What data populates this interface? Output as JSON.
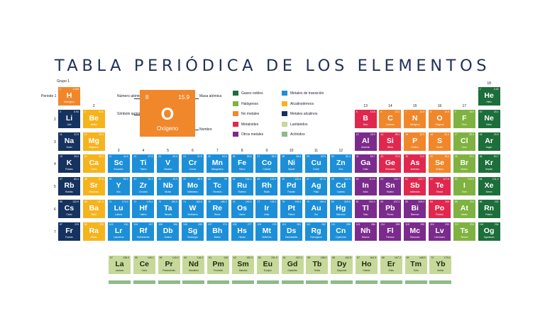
{
  "title": "TABLA PERIÓDICA DE LOS ELEMENTOS",
  "colors": {
    "noble": "#1c6e3a",
    "halogen": "#7fb240",
    "nonmetal": "#f1872b",
    "metalloid": "#e0284f",
    "other": "#7a2b8c",
    "transition": "#1d8fd8",
    "alkaline_earth": "#f5b41d",
    "alkali": "#16325e",
    "lanthanide": "#c7d89b",
    "actinide": "#8fba8a"
  },
  "labels": {
    "group": "Grupo 1",
    "period": "Periodo 1",
    "numero_atomico": "Número atómico",
    "masa_atomica": "Masa atómica",
    "simbolo_quimico": "Símbolo químico",
    "nombre": "Nombre"
  },
  "key": {
    "z": "8",
    "mass": "15.9",
    "symbol": "O",
    "name": "Oxígeno"
  },
  "legend": [
    {
      "label": "Gases nobles",
      "cat": "noble"
    },
    {
      "label": "Halógenos",
      "cat": "halogen"
    },
    {
      "label": "No metales",
      "cat": "nonmetal"
    },
    {
      "label": "Metaloides",
      "cat": "metalloid"
    },
    {
      "label": "Otros metales",
      "cat": "other"
    },
    {
      "label": "Metales de transición",
      "cat": "transition"
    },
    {
      "label": "Alcalinotérreos",
      "cat": "alkaline_earth"
    },
    {
      "label": "Metales alcalinos",
      "cat": "alkali"
    },
    {
      "label": "Lantánidos",
      "cat": "lanthanide"
    },
    {
      "label": "Actínidos",
      "cat": "actinide"
    }
  ],
  "group_numbers": [
    {
      "g": 2,
      "label": "2"
    },
    {
      "g": 3,
      "label": "3"
    },
    {
      "g": 4,
      "label": "4"
    },
    {
      "g": 5,
      "label": "5"
    },
    {
      "g": 6,
      "label": "6"
    },
    {
      "g": 7,
      "label": "7"
    },
    {
      "g": 8,
      "label": "8"
    },
    {
      "g": 9,
      "label": "9"
    },
    {
      "g": 10,
      "label": "10"
    },
    {
      "g": 11,
      "label": "11"
    },
    {
      "g": 12,
      "label": "12"
    },
    {
      "g": 13,
      "label": "13"
    },
    {
      "g": 14,
      "label": "14"
    },
    {
      "g": 15,
      "label": "15"
    },
    {
      "g": 16,
      "label": "16"
    },
    {
      "g": 17,
      "label": "17"
    },
    {
      "g": 18,
      "label": "18"
    }
  ],
  "period_numbers": [
    "2",
    "3",
    "4",
    "5",
    "6",
    "7"
  ],
  "elements": [
    {
      "p": 1,
      "g": 1,
      "z": "1",
      "s": "H",
      "n": "Hidrógeno",
      "m": "1.008",
      "cat": "nonmetal"
    },
    {
      "p": 1,
      "g": 18,
      "z": "2",
      "s": "He",
      "n": "Helio",
      "m": "4.00",
      "cat": "noble"
    },
    {
      "p": 2,
      "g": 1,
      "z": "3",
      "s": "Li",
      "n": "Litio",
      "m": "6.94",
      "cat": "alkali"
    },
    {
      "p": 2,
      "g": 2,
      "z": "4",
      "s": "Be",
      "n": "Berilio",
      "m": "9.01",
      "cat": "alkaline_earth"
    },
    {
      "p": 2,
      "g": 13,
      "z": "5",
      "s": "B",
      "n": "Boro",
      "m": "10.8",
      "cat": "metalloid"
    },
    {
      "p": 2,
      "g": 14,
      "z": "6",
      "s": "C",
      "n": "Carbono",
      "m": "12.0",
      "cat": "nonmetal"
    },
    {
      "p": 2,
      "g": 15,
      "z": "7",
      "s": "N",
      "n": "Nitrógeno",
      "m": "14.0",
      "cat": "nonmetal"
    },
    {
      "p": 2,
      "g": 16,
      "z": "8",
      "s": "O",
      "n": "Oxígeno",
      "m": "15.9",
      "cat": "nonmetal"
    },
    {
      "p": 2,
      "g": 17,
      "z": "9",
      "s": "F",
      "n": "Flúor",
      "m": "18.9",
      "cat": "halogen"
    },
    {
      "p": 2,
      "g": 18,
      "z": "10",
      "s": "Ne",
      "n": "Neón",
      "m": "20.1",
      "cat": "noble"
    },
    {
      "p": 3,
      "g": 1,
      "z": "11",
      "s": "Na",
      "n": "Sodio",
      "m": "22.9",
      "cat": "alkali"
    },
    {
      "p": 3,
      "g": 2,
      "z": "12",
      "s": "Mg",
      "n": "Magnesio",
      "m": "24.3",
      "cat": "alkaline_earth"
    },
    {
      "p": 3,
      "g": 13,
      "z": "13",
      "s": "Al",
      "n": "Aluminio",
      "m": "26.9",
      "cat": "other"
    },
    {
      "p": 3,
      "g": 14,
      "z": "14",
      "s": "Si",
      "n": "Silicio",
      "m": "28.0",
      "cat": "metalloid"
    },
    {
      "p": 3,
      "g": 15,
      "z": "15",
      "s": "P",
      "n": "Fósforo",
      "m": "30.9",
      "cat": "nonmetal"
    },
    {
      "p": 3,
      "g": 16,
      "z": "16",
      "s": "S",
      "n": "Azufre",
      "m": "32.0",
      "cat": "nonmetal"
    },
    {
      "p": 3,
      "g": 17,
      "z": "17",
      "s": "Cl",
      "n": "Cloro",
      "m": "35.4",
      "cat": "halogen"
    },
    {
      "p": 3,
      "g": 18,
      "z": "18",
      "s": "Ar",
      "n": "Argón",
      "m": "39.9",
      "cat": "noble"
    },
    {
      "p": 4,
      "g": 1,
      "z": "19",
      "s": "K",
      "n": "Potasio",
      "m": "39.0",
      "cat": "alkali"
    },
    {
      "p": 4,
      "g": 2,
      "z": "20",
      "s": "Ca",
      "n": "Calcio",
      "m": "40.0",
      "cat": "alkaline_earth"
    },
    {
      "p": 4,
      "g": 3,
      "z": "21",
      "s": "Sc",
      "n": "Escandio",
      "m": "44.9",
      "cat": "transition"
    },
    {
      "p": 4,
      "g": 4,
      "z": "22",
      "s": "Ti",
      "n": "Titanio",
      "m": "47.8",
      "cat": "transition"
    },
    {
      "p": 4,
      "g": 5,
      "z": "23",
      "s": "V",
      "n": "Vanadio",
      "m": "50.9",
      "cat": "transition"
    },
    {
      "p": 4,
      "g": 6,
      "z": "24",
      "s": "Cr",
      "n": "Cromo",
      "m": "51.9",
      "cat": "transition"
    },
    {
      "p": 4,
      "g": 7,
      "z": "25",
      "s": "Mn",
      "n": "Manganeso",
      "m": "54.9",
      "cat": "transition"
    },
    {
      "p": 4,
      "g": 8,
      "z": "26",
      "s": "Fe",
      "n": "Hierro",
      "m": "55.8",
      "cat": "transition"
    },
    {
      "p": 4,
      "g": 9,
      "z": "27",
      "s": "Co",
      "n": "Cobalto",
      "m": "58.9",
      "cat": "transition"
    },
    {
      "p": 4,
      "g": 10,
      "z": "28",
      "s": "Ni",
      "n": "Níquel",
      "m": "58.6",
      "cat": "transition"
    },
    {
      "p": 4,
      "g": 11,
      "z": "29",
      "s": "Cu",
      "n": "Cobre",
      "m": "63.5",
      "cat": "transition"
    },
    {
      "p": 4,
      "g": 12,
      "z": "30",
      "s": "Zn",
      "n": "Zinc",
      "m": "65.3",
      "cat": "transition"
    },
    {
      "p": 4,
      "g": 13,
      "z": "31",
      "s": "Ga",
      "n": "Galio",
      "m": "69.7",
      "cat": "other"
    },
    {
      "p": 4,
      "g": 14,
      "z": "32",
      "s": "Ge",
      "n": "Germanio",
      "m": "72.6",
      "cat": "metalloid"
    },
    {
      "p": 4,
      "g": 15,
      "z": "33",
      "s": "As",
      "n": "Arsénico",
      "m": "74.9",
      "cat": "metalloid"
    },
    {
      "p": 4,
      "g": 16,
      "z": "34",
      "s": "Se",
      "n": "Selenio",
      "m": "78.9",
      "cat": "nonmetal"
    },
    {
      "p": 4,
      "g": 17,
      "z": "35",
      "s": "Br",
      "n": "Bromo",
      "m": "79.9",
      "cat": "halogen"
    },
    {
      "p": 4,
      "g": 18,
      "z": "36",
      "s": "Kr",
      "n": "Kriptón",
      "m": "83.7",
      "cat": "noble"
    },
    {
      "p": 5,
      "g": 1,
      "z": "37",
      "s": "Rb",
      "n": "Rubidio",
      "m": "85.4",
      "cat": "alkali"
    },
    {
      "p": 5,
      "g": 2,
      "z": "38",
      "s": "Sr",
      "n": "Estroncio",
      "m": "87.6",
      "cat": "alkaline_earth"
    },
    {
      "p": 5,
      "g": 3,
      "z": "39",
      "s": "Y",
      "n": "Itrio",
      "m": "88.9",
      "cat": "transition"
    },
    {
      "p": 5,
      "g": 4,
      "z": "40",
      "s": "Zr",
      "n": "Circonio",
      "m": "91.2",
      "cat": "transition"
    },
    {
      "p": 5,
      "g": 5,
      "z": "41",
      "s": "Nb",
      "n": "Niobio",
      "m": "92.9",
      "cat": "transition"
    },
    {
      "p": 5,
      "g": 6,
      "z": "42",
      "s": "Mo",
      "n": "Molibdeno",
      "m": "95.9",
      "cat": "transition"
    },
    {
      "p": 5,
      "g": 7,
      "z": "43",
      "s": "Tc",
      "n": "Tecnecio",
      "m": "98",
      "cat": "transition"
    },
    {
      "p": 5,
      "g": 8,
      "z": "44",
      "s": "Ru",
      "n": "Rutenio",
      "m": "101.0",
      "cat": "transition"
    },
    {
      "p": 5,
      "g": 9,
      "z": "45",
      "s": "Rh",
      "n": "Rodio",
      "m": "102.9",
      "cat": "transition"
    },
    {
      "p": 5,
      "g": 10,
      "z": "46",
      "s": "Pd",
      "n": "Paladio",
      "m": "106.4",
      "cat": "transition"
    },
    {
      "p": 5,
      "g": 11,
      "z": "47",
      "s": "Ag",
      "n": "Plata",
      "m": "107.8",
      "cat": "transition"
    },
    {
      "p": 5,
      "g": 12,
      "z": "48",
      "s": "Cd",
      "n": "Cadmio",
      "m": "112.4",
      "cat": "transition"
    },
    {
      "p": 5,
      "g": 13,
      "z": "49",
      "s": "In",
      "n": "Indio",
      "m": "114.8",
      "cat": "other"
    },
    {
      "p": 5,
      "g": 14,
      "z": "50",
      "s": "Sn",
      "n": "Estaño",
      "m": "118.7",
      "cat": "other"
    },
    {
      "p": 5,
      "g": 15,
      "z": "51",
      "s": "Sb",
      "n": "Antimonio",
      "m": "121.7",
      "cat": "metalloid"
    },
    {
      "p": 5,
      "g": 16,
      "z": "52",
      "s": "Te",
      "n": "Telurio",
      "m": "127.6",
      "cat": "metalloid"
    },
    {
      "p": 5,
      "g": 17,
      "z": "53",
      "s": "I",
      "n": "Yodo",
      "m": "126.9",
      "cat": "halogen"
    },
    {
      "p": 5,
      "g": 18,
      "z": "54",
      "s": "Xe",
      "n": "Xenón",
      "m": "131.2",
      "cat": "noble"
    },
    {
      "p": 6,
      "g": 1,
      "z": "55",
      "s": "Cs",
      "n": "Cesio",
      "m": "132.9",
      "cat": "alkali"
    },
    {
      "p": 6,
      "g": 2,
      "z": "56",
      "s": "Ba",
      "n": "Bario",
      "m": "137.3",
      "cat": "alkaline_earth"
    },
    {
      "p": 6,
      "g": 3,
      "z": "71",
      "s": "Lu",
      "n": "Lutecio",
      "m": "174.9",
      "cat": "transition"
    },
    {
      "p": 6,
      "g": 4,
      "z": "72",
      "s": "Hf",
      "n": "Hafnio",
      "m": "178.4",
      "cat": "transition"
    },
    {
      "p": 6,
      "g": 5,
      "z": "73",
      "s": "Ta",
      "n": "Tantalio",
      "m": "180.9",
      "cat": "transition"
    },
    {
      "p": 6,
      "g": 6,
      "z": "74",
      "s": "W",
      "n": "Wolframio",
      "m": "183.8",
      "cat": "transition"
    },
    {
      "p": 6,
      "g": 7,
      "z": "75",
      "s": "Re",
      "n": "Renio",
      "m": "186.2",
      "cat": "transition"
    },
    {
      "p": 6,
      "g": 8,
      "z": "76",
      "s": "Os",
      "n": "Osmio",
      "m": "190.2",
      "cat": "transition"
    },
    {
      "p": 6,
      "g": 9,
      "z": "77",
      "s": "Ir",
      "n": "Iridio",
      "m": "192.2",
      "cat": "transition"
    },
    {
      "p": 6,
      "g": 10,
      "z": "78",
      "s": "Pt",
      "n": "Platino",
      "m": "195.0",
      "cat": "transition"
    },
    {
      "p": 6,
      "g": 11,
      "z": "79",
      "s": "Au",
      "n": "Oro",
      "m": "196.9",
      "cat": "transition"
    },
    {
      "p": 6,
      "g": 12,
      "z": "80",
      "s": "Hg",
      "n": "Mercurio",
      "m": "200.5",
      "cat": "transition"
    },
    {
      "p": 6,
      "g": 13,
      "z": "81",
      "s": "Tl",
      "n": "Talio",
      "m": "204.3",
      "cat": "other"
    },
    {
      "p": 6,
      "g": 14,
      "z": "82",
      "s": "Pb",
      "n": "Plomo",
      "m": "207.2",
      "cat": "other"
    },
    {
      "p": 6,
      "g": 15,
      "z": "83",
      "s": "Bi",
      "n": "Bismuto",
      "m": "208.9",
      "cat": "other"
    },
    {
      "p": 6,
      "g": 16,
      "z": "84",
      "s": "Po",
      "n": "Polonio",
      "m": "209",
      "cat": "metalloid"
    },
    {
      "p": 6,
      "g": 17,
      "z": "85",
      "s": "At",
      "n": "Ástato",
      "m": "210",
      "cat": "halogen"
    },
    {
      "p": 6,
      "g": 18,
      "z": "86",
      "s": "Rn",
      "n": "Radón",
      "m": "222",
      "cat": "noble"
    },
    {
      "p": 7,
      "g": 1,
      "z": "87",
      "s": "Fr",
      "n": "Francio",
      "m": "223",
      "cat": "alkali"
    },
    {
      "p": 7,
      "g": 2,
      "z": "88",
      "s": "Ra",
      "n": "Radio",
      "m": "226",
      "cat": "alkaline_earth"
    },
    {
      "p": 7,
      "g": 3,
      "z": "103",
      "s": "Lr",
      "n": "Lawrencio",
      "m": "262",
      "cat": "transition"
    },
    {
      "p": 7,
      "g": 4,
      "z": "104",
      "s": "Rf",
      "n": "Rutherfordio",
      "m": "267",
      "cat": "transition"
    },
    {
      "p": 7,
      "g": 5,
      "z": "105",
      "s": "Db",
      "n": "Dubnio",
      "m": "268",
      "cat": "transition"
    },
    {
      "p": 7,
      "g": 6,
      "z": "106",
      "s": "Sg",
      "n": "Seaborgio",
      "m": "269",
      "cat": "transition"
    },
    {
      "p": 7,
      "g": 7,
      "z": "107",
      "s": "Bh",
      "n": "Bohrio",
      "m": "270",
      "cat": "transition"
    },
    {
      "p": 7,
      "g": 8,
      "z": "108",
      "s": "Hs",
      "n": "Hassio",
      "m": "277",
      "cat": "transition"
    },
    {
      "p": 7,
      "g": 9,
      "z": "109",
      "s": "Mt",
      "n": "Meitnerio",
      "m": "278",
      "cat": "transition"
    },
    {
      "p": 7,
      "g": 10,
      "z": "110",
      "s": "Ds",
      "n": "Darmstadtio",
      "m": "281",
      "cat": "transition"
    },
    {
      "p": 7,
      "g": 11,
      "z": "111",
      "s": "Rg",
      "n": "Roentgenio",
      "m": "282",
      "cat": "transition"
    },
    {
      "p": 7,
      "g": 12,
      "z": "112",
      "s": "Cn",
      "n": "Copernicio",
      "m": "285",
      "cat": "transition"
    },
    {
      "p": 7,
      "g": 13,
      "z": "113",
      "s": "Nh",
      "n": "Nihonio",
      "m": "286",
      "cat": "other"
    },
    {
      "p": 7,
      "g": 14,
      "z": "114",
      "s": "Fl",
      "n": "Flerovio",
      "m": "289",
      "cat": "other"
    },
    {
      "p": 7,
      "g": 15,
      "z": "115",
      "s": "Mc",
      "n": "Moscovio",
      "m": "290",
      "cat": "other"
    },
    {
      "p": 7,
      "g": 16,
      "z": "116",
      "s": "Lv",
      "n": "Livermorio",
      "m": "293",
      "cat": "other"
    },
    {
      "p": 7,
      "g": 17,
      "z": "117",
      "s": "Ts",
      "n": "Teneso",
      "m": "294",
      "cat": "halogen"
    },
    {
      "p": 7,
      "g": 18,
      "z": "118",
      "s": "Og",
      "n": "Oganesón",
      "m": "294",
      "cat": "noble"
    }
  ],
  "lanthanides": [
    {
      "z": "57",
      "s": "La",
      "n": "Lantano",
      "m": "138.9"
    },
    {
      "z": "58",
      "s": "Ce",
      "n": "Cerio",
      "m": "140.1"
    },
    {
      "z": "59",
      "s": "Pr",
      "n": "Praseodimio",
      "m": "140.9"
    },
    {
      "z": "60",
      "s": "Nd",
      "n": "Neodimio",
      "m": "144.2"
    },
    {
      "z": "61",
      "s": "Pm",
      "n": "Prometio",
      "m": "145"
    },
    {
      "z": "62",
      "s": "Sm",
      "n": "Samario",
      "m": "150.3"
    },
    {
      "z": "63",
      "s": "Eu",
      "n": "Europio",
      "m": "151.9"
    },
    {
      "z": "64",
      "s": "Gd",
      "n": "Gadolinio",
      "m": "157.2"
    },
    {
      "z": "65",
      "s": "Tb",
      "n": "Terbio",
      "m": "158.9"
    },
    {
      "z": "66",
      "s": "Dy",
      "n": "Disprosio",
      "m": "162.5"
    },
    {
      "z": "67",
      "s": "Ho",
      "n": "Holmio",
      "m": "164.9"
    },
    {
      "z": "68",
      "s": "Er",
      "n": "Erbio",
      "m": "167.2"
    },
    {
      "z": "69",
      "s": "Tm",
      "n": "Tulio",
      "m": "168.9"
    },
    {
      "z": "70",
      "s": "Yb",
      "n": "Iterbio",
      "m": "173.0"
    }
  ]
}
